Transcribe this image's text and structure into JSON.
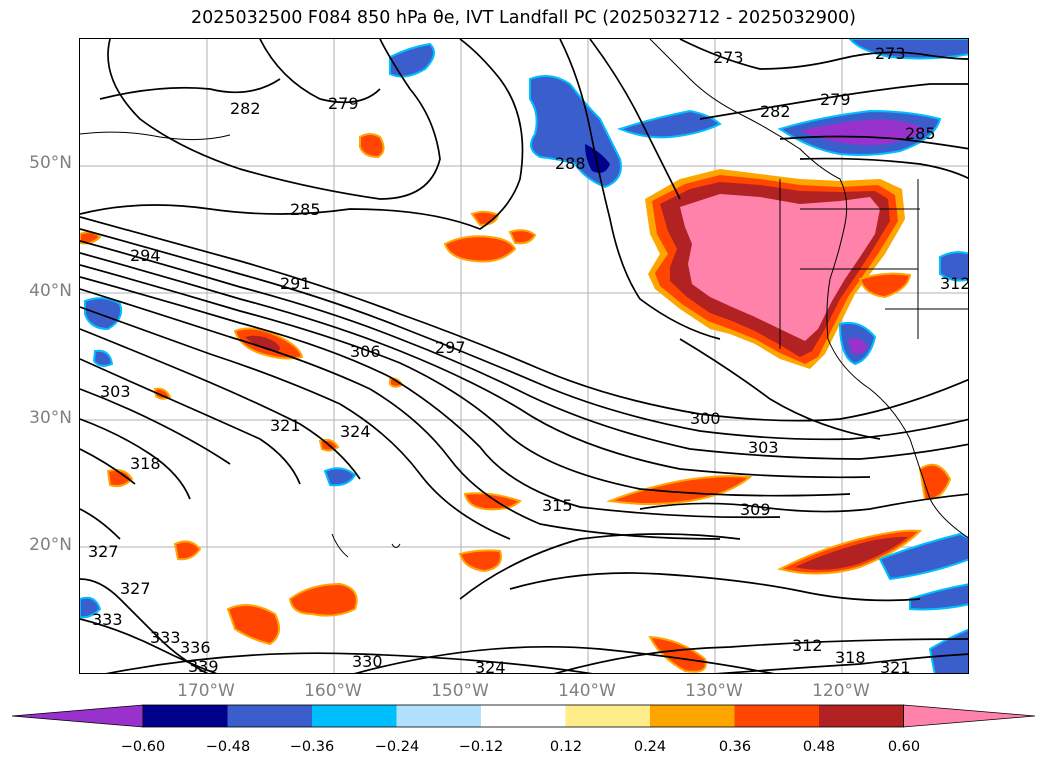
{
  "title": "2025032500 F084 850 hPa θe, IVT Landfall PC (2025032712 - 2025032900)",
  "lat_labels": [
    "50°N",
    "40°N",
    "30°N",
    "20°N"
  ],
  "lon_labels": [
    "170°W",
    "160°W",
    "150°W",
    "140°W",
    "130°W",
    "120°W"
  ],
  "contour_labels": [
    "273",
    "273",
    "279",
    "279",
    "282",
    "282",
    "285",
    "285",
    "288",
    "291",
    "294",
    "297",
    "300",
    "303",
    "303",
    "306",
    "309",
    "312",
    "312",
    "315",
    "318",
    "318",
    "321",
    "321",
    "324",
    "324",
    "327",
    "327",
    "330",
    "333",
    "333",
    "336",
    "339"
  ],
  "colorbar": {
    "ticks": [
      "−0.60",
      "−0.48",
      "−0.36",
      "−0.24",
      "−0.12",
      "0.12",
      "0.24",
      "0.36",
      "0.48",
      "0.60"
    ],
    "colors": [
      "#9932cc",
      "#00008b",
      "#3a5fcd",
      "#00bfff",
      "#b0e2ff",
      "#ffffff",
      "#ffec8b",
      "#ffa500",
      "#ff4500",
      "#b22222",
      "#ff82ab"
    ]
  }
}
